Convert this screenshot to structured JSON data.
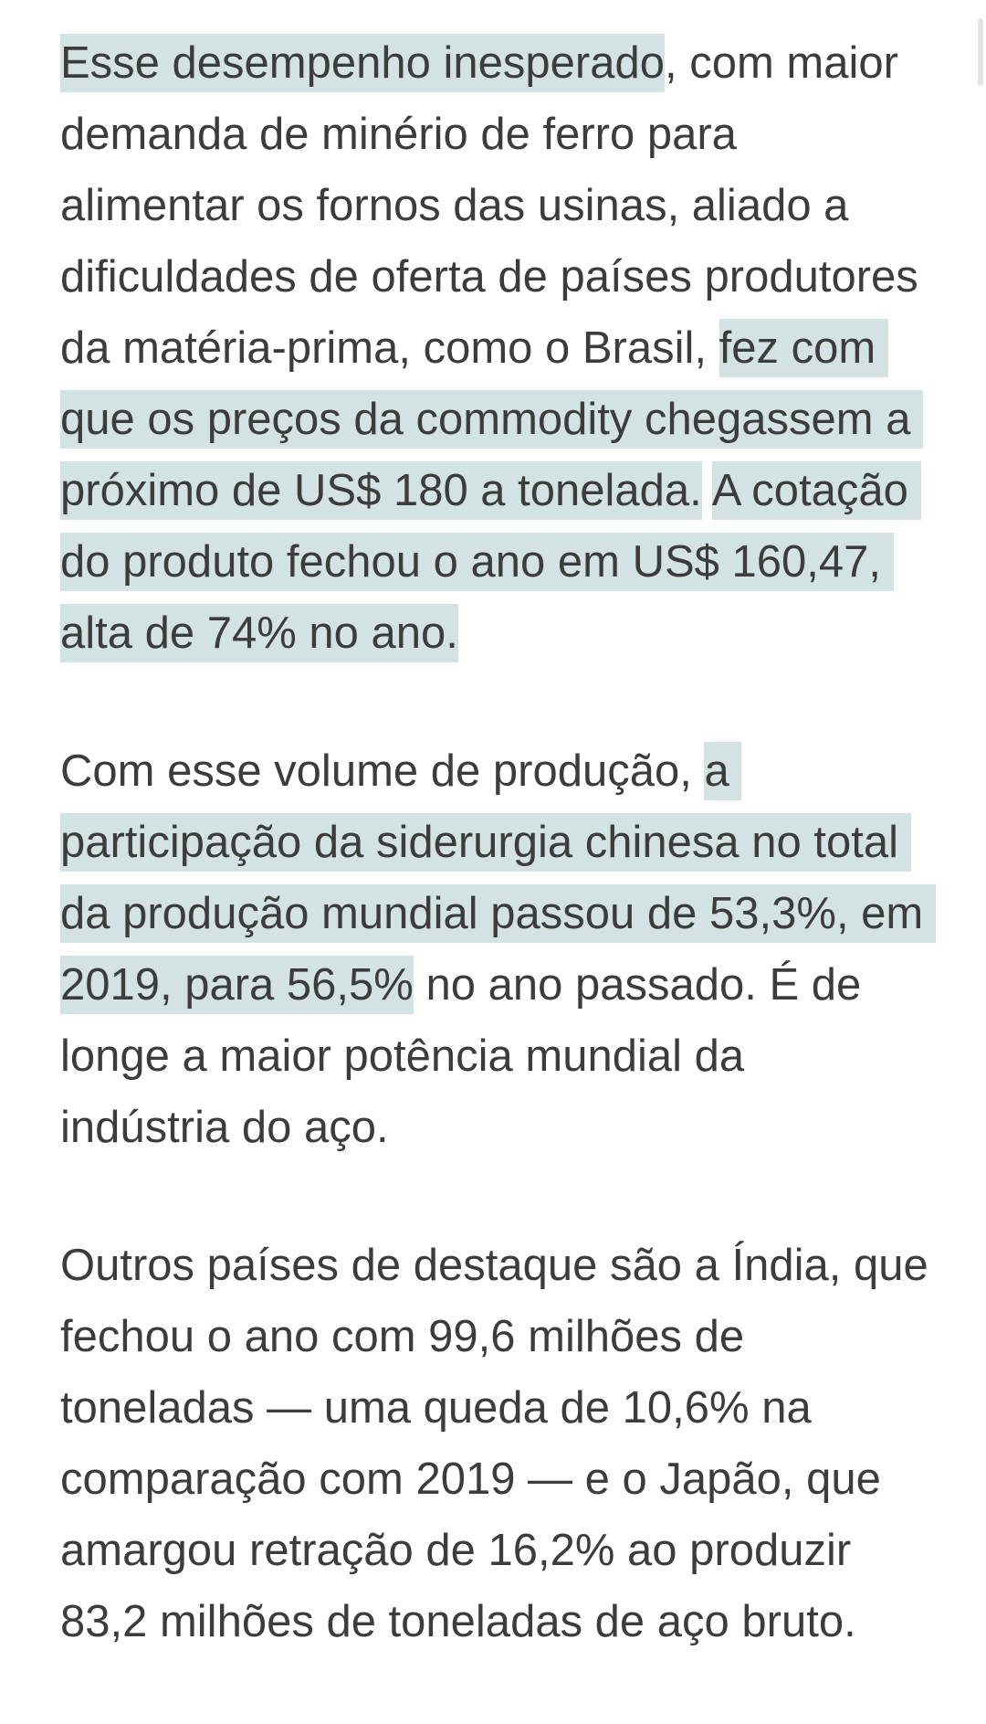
{
  "page": {
    "background": "#ffffff",
    "text_color": "#3c3c3c",
    "highlight_color": "#d3e2e2",
    "scrollbar_color": "#e4e4e4"
  },
  "article": {
    "paragraphs": [
      {
        "lines": [
          {
            "segments": [
              {
                "text": "Esse desempenho inesperado",
                "highlight": true
              },
              {
                "text": ", com maior",
                "highlight": false
              }
            ]
          },
          {
            "segments": [
              {
                "text": "demanda de minério de ferro para",
                "highlight": false
              }
            ]
          },
          {
            "segments": [
              {
                "text": "alimentar os fornos das usinas, aliado a",
                "highlight": false
              }
            ]
          },
          {
            "segments": [
              {
                "text": "dificuldades de oferta de países produtores",
                "highlight": false
              }
            ]
          },
          {
            "segments": [
              {
                "text": "da matéria-prima, como o Brasil, ",
                "highlight": false
              },
              {
                "text": "fez com ",
                "highlight": true
              }
            ]
          },
          {
            "segments": [
              {
                "text": "que os preços da commodity chegassem a ",
                "highlight": true
              }
            ]
          },
          {
            "segments": [
              {
                "text": "próximo de US$ 180 a tonelada.",
                "highlight": true
              },
              {
                "text": " ",
                "highlight": false
              },
              {
                "text": "A cotação ",
                "highlight": true
              }
            ]
          },
          {
            "segments": [
              {
                "text": "do produto fechou o ano em US$ 160,47, ",
                "highlight": true
              }
            ]
          },
          {
            "segments": [
              {
                "text": "alta de 74% no ano.",
                "highlight": true
              }
            ]
          }
        ]
      },
      {
        "lines": [
          {
            "segments": [
              {
                "text": "Com esse volume de produção, ",
                "highlight": false
              },
              {
                "text": "a ",
                "highlight": true
              }
            ]
          },
          {
            "segments": [
              {
                "text": "participação da siderurgia chinesa no total ",
                "highlight": true
              }
            ]
          },
          {
            "segments": [
              {
                "text": "da produção mundial passou de 53,3%, em ",
                "highlight": true
              }
            ]
          },
          {
            "segments": [
              {
                "text": "2019, para 56,5%",
                "highlight": true
              },
              {
                "text": " no ano passado. É de",
                "highlight": false
              }
            ]
          },
          {
            "segments": [
              {
                "text": "longe a maior potência mundial da",
                "highlight": false
              }
            ]
          },
          {
            "segments": [
              {
                "text": "indústria do aço.",
                "highlight": false
              }
            ]
          }
        ]
      },
      {
        "lines": [
          {
            "segments": [
              {
                "text": "Outros países de destaque são a Índia, que",
                "highlight": false
              }
            ]
          },
          {
            "segments": [
              {
                "text": "fechou o ano com 99,6 milhões de",
                "highlight": false
              }
            ]
          },
          {
            "segments": [
              {
                "text": "toneladas — uma queda de 10,6% na",
                "highlight": false
              }
            ]
          },
          {
            "segments": [
              {
                "text": "comparação com 2019 — e o Japão, que",
                "highlight": false
              }
            ]
          },
          {
            "segments": [
              {
                "text": "amargou retração de 16,2% ao produzir",
                "highlight": false
              }
            ]
          },
          {
            "segments": [
              {
                "text": "83,2 milhões de toneladas de aço bruto.",
                "highlight": false
              }
            ]
          }
        ]
      }
    ]
  }
}
